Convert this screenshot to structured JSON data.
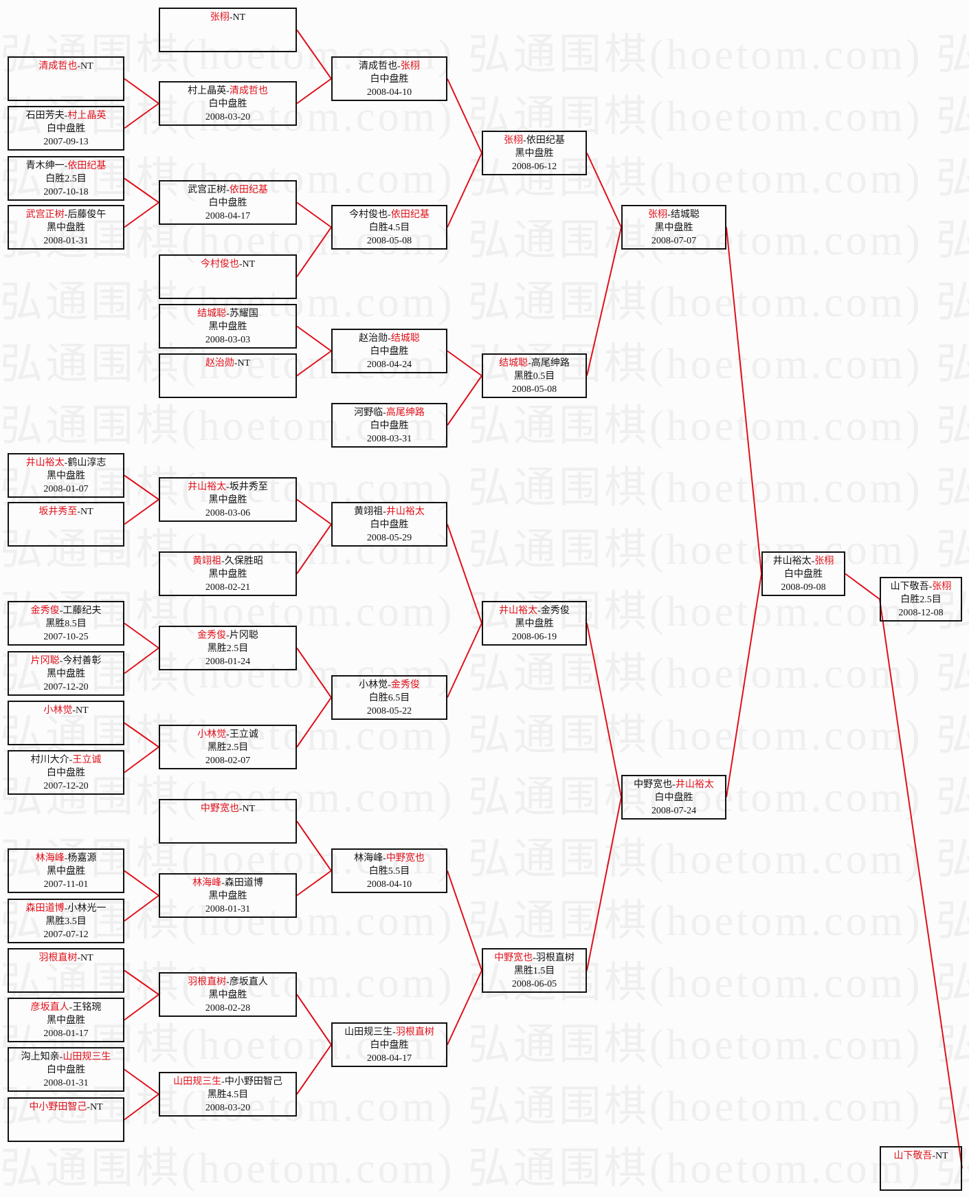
{
  "watermark": "弘通围棋(hoetom.com)",
  "colors": {
    "winner": "#e0101a",
    "line": "#e0101a",
    "text": "#111111",
    "border": "#111111"
  },
  "separator": "-",
  "matches": [
    {
      "players": [
        "清成哲也",
        "NT"
      ],
      "winner": 0,
      "result": "",
      "date": ""
    },
    {
      "players": [
        "石田芳夫",
        "村上晶英"
      ],
      "winner": 1,
      "result": "白中盘胜",
      "date": "2007-09-13"
    },
    {
      "players": [
        "青木绅一",
        "依田纪基"
      ],
      "winner": 1,
      "result": "白胜2.5目",
      "date": "2007-10-18"
    },
    {
      "players": [
        "武宫正树",
        "后藤俊午"
      ],
      "winner": 0,
      "result": "黑中盘胜",
      "date": "2008-01-31"
    },
    {
      "players": [
        "井山裕太",
        "鹤山淳志"
      ],
      "winner": 0,
      "result": "黑中盘胜",
      "date": "2008-01-07"
    },
    {
      "players": [
        "坂井秀至",
        "NT"
      ],
      "winner": 0,
      "result": "",
      "date": ""
    },
    {
      "players": [
        "金秀俊",
        "工藤纪夫"
      ],
      "winner": 0,
      "result": "黑胜8.5目",
      "date": "2007-10-25"
    },
    {
      "players": [
        "片冈聪",
        "今村善彰"
      ],
      "winner": 0,
      "result": "黑中盘胜",
      "date": "2007-12-20"
    },
    {
      "players": [
        "小林觉",
        "NT"
      ],
      "winner": 0,
      "result": "",
      "date": ""
    },
    {
      "players": [
        "村川大介",
        "王立诚"
      ],
      "winner": 1,
      "result": "白中盘胜",
      "date": "2007-12-20"
    },
    {
      "players": [
        "林海峰",
        "杨嘉源"
      ],
      "winner": 0,
      "result": "黑中盘胜",
      "date": "2007-11-01"
    },
    {
      "players": [
        "森田道博",
        "小林光一"
      ],
      "winner": 0,
      "result": "黑胜3.5目",
      "date": "2007-07-12"
    },
    {
      "players": [
        "羽根直树",
        "NT"
      ],
      "winner": 0,
      "result": "",
      "date": ""
    },
    {
      "players": [
        "彦坂直人",
        "王铭琬"
      ],
      "winner": 0,
      "result": "黑中盘胜",
      "date": "2008-01-17"
    },
    {
      "players": [
        "沟上知亲",
        "山田规三生"
      ],
      "winner": 1,
      "result": "白中盘胜",
      "date": "2008-01-31"
    },
    {
      "players": [
        "中小野田智己",
        "NT"
      ],
      "winner": 0,
      "result": "",
      "date": ""
    },
    {
      "players": [
        "张栩",
        "NT"
      ],
      "winner": 0,
      "result": "",
      "date": ""
    },
    {
      "players": [
        "村上晶英",
        "清成哲也"
      ],
      "winner": 1,
      "result": "白中盘胜",
      "date": "2008-03-20"
    },
    {
      "players": [
        "武宫正树",
        "依田纪基"
      ],
      "winner": 1,
      "result": "白中盘胜",
      "date": "2008-04-17"
    },
    {
      "players": [
        "今村俊也",
        "NT"
      ],
      "winner": 0,
      "result": "",
      "date": ""
    },
    {
      "players": [
        "结城聪",
        "苏耀国"
      ],
      "winner": 0,
      "result": "黑中盘胜",
      "date": "2008-03-03"
    },
    {
      "players": [
        "赵治勋",
        "NT"
      ],
      "winner": 0,
      "result": "",
      "date": ""
    },
    {
      "players": [
        "井山裕太",
        "坂井秀至"
      ],
      "winner": 0,
      "result": "黑中盘胜",
      "date": "2008-03-06"
    },
    {
      "players": [
        "黄翊祖",
        "久保胜昭"
      ],
      "winner": 0,
      "result": "黑中盘胜",
      "date": "2008-02-21"
    },
    {
      "players": [
        "金秀俊",
        "片冈聪"
      ],
      "winner": 0,
      "result": "黑胜2.5目",
      "date": "2008-01-24"
    },
    {
      "players": [
        "小林觉",
        "王立诚"
      ],
      "winner": 0,
      "result": "黑胜2.5目",
      "date": "2008-02-07"
    },
    {
      "players": [
        "中野宽也",
        "NT"
      ],
      "winner": 0,
      "result": "",
      "date": ""
    },
    {
      "players": [
        "林海峰",
        "森田道博"
      ],
      "winner": 0,
      "result": "黑中盘胜",
      "date": "2008-01-31"
    },
    {
      "players": [
        "羽根直树",
        "彦坂直人"
      ],
      "winner": 0,
      "result": "黑中盘胜",
      "date": "2008-02-28"
    },
    {
      "players": [
        "山田规三生",
        "中小野田智己"
      ],
      "winner": 0,
      "result": "黑胜4.5目",
      "date": "2008-03-20"
    },
    {
      "players": [
        "清成哲也",
        "张栩"
      ],
      "winner": 1,
      "result": "白中盘胜",
      "date": "2008-04-10"
    },
    {
      "players": [
        "今村俊也",
        "依田纪基"
      ],
      "winner": 1,
      "result": "白胜4.5目",
      "date": "2008-05-08"
    },
    {
      "players": [
        "赵治勋",
        "结城聪"
      ],
      "winner": 1,
      "result": "白中盘胜",
      "date": "2008-04-24"
    },
    {
      "players": [
        "河野临",
        "高尾绅路"
      ],
      "winner": 1,
      "result": "白中盘胜",
      "date": "2008-03-31"
    },
    {
      "players": [
        "黄翊祖",
        "井山裕太"
      ],
      "winner": 1,
      "result": "白中盘胜",
      "date": "2008-05-29"
    },
    {
      "players": [
        "小林觉",
        "金秀俊"
      ],
      "winner": 1,
      "result": "白胜6.5目",
      "date": "2008-05-22"
    },
    {
      "players": [
        "林海峰",
        "中野宽也"
      ],
      "winner": 1,
      "result": "白胜5.5目",
      "date": "2008-04-10"
    },
    {
      "players": [
        "山田规三生",
        "羽根直树"
      ],
      "winner": 1,
      "result": "白中盘胜",
      "date": "2008-04-17"
    },
    {
      "players": [
        "张栩",
        "依田纪基"
      ],
      "winner": 0,
      "result": "黑中盘胜",
      "date": "2008-06-12"
    },
    {
      "players": [
        "结城聪",
        "高尾绅路"
      ],
      "winner": 0,
      "result": "黑胜0.5目",
      "date": "2008-05-08"
    },
    {
      "players": [
        "井山裕太",
        "金秀俊"
      ],
      "winner": 0,
      "result": "黑中盘胜",
      "date": "2008-06-19"
    },
    {
      "players": [
        "中野宽也",
        "羽根直树"
      ],
      "winner": 0,
      "result": "黑胜1.5目",
      "date": "2008-06-05"
    },
    {
      "players": [
        "张栩",
        "结城聪"
      ],
      "winner": 0,
      "result": "黑中盘胜",
      "date": "2008-07-07"
    },
    {
      "players": [
        "中野宽也",
        "井山裕太"
      ],
      "winner": 1,
      "result": "白中盘胜",
      "date": "2008-07-24"
    },
    {
      "players": [
        "井山裕太",
        "张栩"
      ],
      "winner": 1,
      "result": "白中盘胜",
      "date": "2008-09-08"
    },
    {
      "players": [
        "山下敬吾",
        "张栩"
      ],
      "winner": 1,
      "result": "白胜2.5目",
      "date": "2008-12-08"
    },
    {
      "players": [
        "山下敬吾",
        "NT"
      ],
      "winner": 0,
      "result": "",
      "date": ""
    }
  ]
}
